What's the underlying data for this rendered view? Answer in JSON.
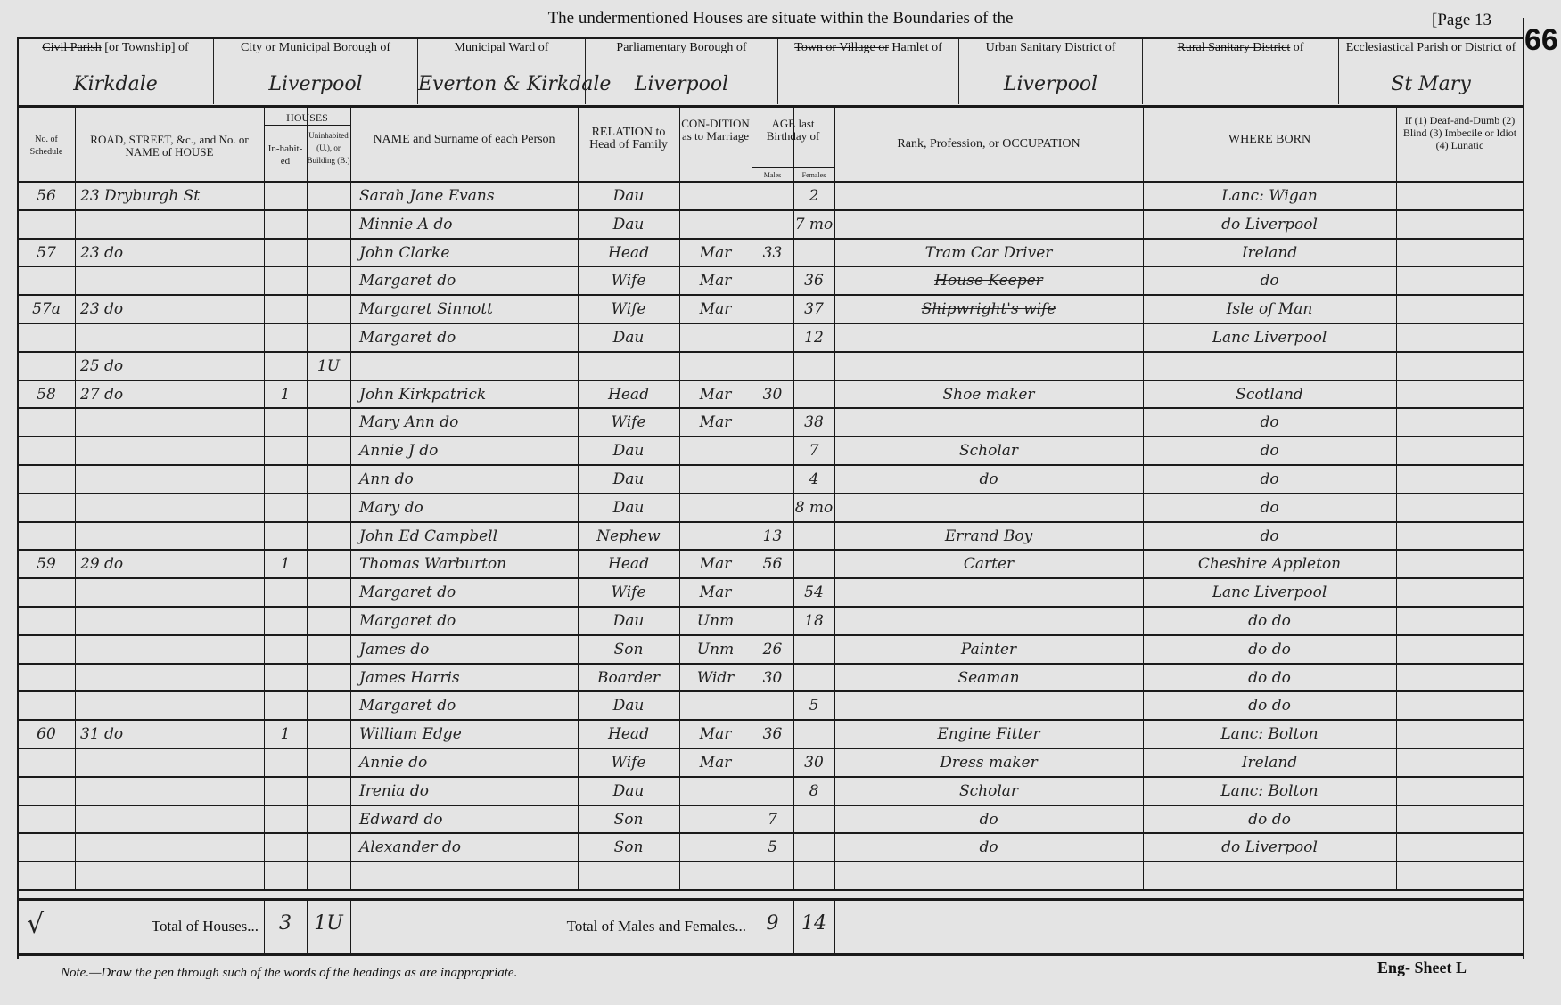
{
  "page": {
    "title": "The undermentioned Houses are situate within the Boundaries of the",
    "page_label": "[Page 13",
    "folio_number": "66",
    "note": "Note.—Draw the pen through such of the words of the headings as are inappropriate.",
    "sheet": "Eng- Sheet L"
  },
  "districts": [
    {
      "label_struck": "Civil Parish",
      "label": "[or Township] of",
      "value": "Kirkdale"
    },
    {
      "label_struck": "",
      "label": "City or Municipal Borough of",
      "value": "Liverpool"
    },
    {
      "label_struck": "",
      "label": "Municipal Ward of",
      "value": "Everton & Kirkdale"
    },
    {
      "label_struck": "",
      "label": "Parliamentary Borough of",
      "value": "Liverpool"
    },
    {
      "label_struck": "Town or Village or",
      "label": "Hamlet of",
      "value": ""
    },
    {
      "label_struck": "",
      "label": "Urban Sanitary District of",
      "value": "Liverpool"
    },
    {
      "label_struck": "Rural Sanitary District",
      "label": "of",
      "value": ""
    },
    {
      "label_struck": "",
      "label": "Ecclesiastical Parish or District of",
      "value": "St Mary"
    }
  ],
  "columns": {
    "schedule": "No. of Schedule",
    "road": "ROAD, STREET, &c., and No. or NAME of HOUSE",
    "houses": "HOUSES",
    "inhabited": "In-habit-ed",
    "uninhabited": "Uninhabited (U.), or Building (B.)",
    "name": "NAME and Surname of each Person",
    "relation": "RELATION to Head of Family",
    "condition": "CON-DITION as to Marriage",
    "age": "AGE last Birthday of",
    "males": "Males",
    "females": "Females",
    "occupation": "Rank, Profession, or OCCUPATION",
    "where_born": "WHERE BORN",
    "infirmity": "If (1) Deaf-and-Dumb (2) Blind (3) Imbecile or Idiot (4) Lunatic"
  },
  "rows": [
    {
      "schedule": "56",
      "road": "23 Dryburgh St",
      "inhabited": "",
      "uninhabited": "",
      "name": "Sarah Jane Evans",
      "relation": "Dau",
      "condition": "",
      "male_age": "",
      "female_age": "2",
      "occupation": "",
      "occupation_struck": false,
      "where_born": "Lanc: Wigan"
    },
    {
      "schedule": "",
      "road": "",
      "inhabited": "",
      "uninhabited": "",
      "name": "Minnie A do",
      "relation": "Dau",
      "condition": "",
      "male_age": "",
      "female_age": "7 mo",
      "occupation": "",
      "occupation_struck": false,
      "where_born": "do Liverpool"
    },
    {
      "schedule": "57",
      "road": "23 do",
      "inhabited": "",
      "uninhabited": "",
      "name": "John Clarke",
      "relation": "Head",
      "condition": "Mar",
      "male_age": "33",
      "female_age": "",
      "occupation": "Tram Car Driver",
      "occupation_struck": false,
      "where_born": "Ireland"
    },
    {
      "schedule": "",
      "road": "",
      "inhabited": "",
      "uninhabited": "",
      "name": "Margaret do",
      "relation": "Wife",
      "condition": "Mar",
      "male_age": "",
      "female_age": "36",
      "occupation": "House Keeper",
      "occupation_struck": true,
      "where_born": "do"
    },
    {
      "schedule": "57a",
      "road": "23 do",
      "inhabited": "",
      "uninhabited": "",
      "name": "Margaret Sinnott",
      "relation": "Wife",
      "condition": "Mar",
      "male_age": "",
      "female_age": "37",
      "occupation": "Shipwright's wife",
      "occupation_struck": true,
      "where_born": "Isle of Man"
    },
    {
      "schedule": "",
      "road": "",
      "inhabited": "",
      "uninhabited": "",
      "name": "Margaret do",
      "relation": "Dau",
      "condition": "",
      "male_age": "",
      "female_age": "12",
      "occupation": "",
      "occupation_struck": false,
      "where_born": "Lanc Liverpool"
    },
    {
      "schedule": "",
      "road": "25 do",
      "inhabited": "",
      "uninhabited": "1U",
      "name": "",
      "relation": "",
      "condition": "",
      "male_age": "",
      "female_age": "",
      "occupation": "",
      "occupation_struck": false,
      "where_born": ""
    },
    {
      "schedule": "58",
      "road": "27 do",
      "inhabited": "1",
      "uninhabited": "",
      "name": "John Kirkpatrick",
      "relation": "Head",
      "condition": "Mar",
      "male_age": "30",
      "female_age": "",
      "occupation": "Shoe maker",
      "occupation_struck": false,
      "where_born": "Scotland"
    },
    {
      "schedule": "",
      "road": "",
      "inhabited": "",
      "uninhabited": "",
      "name": "Mary Ann do",
      "relation": "Wife",
      "condition": "Mar",
      "male_age": "",
      "female_age": "38",
      "occupation": "",
      "occupation_struck": false,
      "where_born": "do"
    },
    {
      "schedule": "",
      "road": "",
      "inhabited": "",
      "uninhabited": "",
      "name": "Annie J do",
      "relation": "Dau",
      "condition": "",
      "male_age": "",
      "female_age": "7",
      "occupation": "Scholar",
      "occupation_struck": false,
      "where_born": "do"
    },
    {
      "schedule": "",
      "road": "",
      "inhabited": "",
      "uninhabited": "",
      "name": "Ann do",
      "relation": "Dau",
      "condition": "",
      "male_age": "",
      "female_age": "4",
      "occupation": "do",
      "occupation_struck": false,
      "where_born": "do"
    },
    {
      "schedule": "",
      "road": "",
      "inhabited": "",
      "uninhabited": "",
      "name": "Mary do",
      "relation": "Dau",
      "condition": "",
      "male_age": "",
      "female_age": "8 mo",
      "occupation": "",
      "occupation_struck": false,
      "where_born": "do"
    },
    {
      "schedule": "",
      "road": "",
      "inhabited": "",
      "uninhabited": "",
      "name": "John Ed Campbell",
      "relation": "Nephew",
      "condition": "",
      "male_age": "13",
      "female_age": "",
      "occupation": "Errand Boy",
      "occupation_struck": false,
      "where_born": "do"
    },
    {
      "schedule": "59",
      "road": "29 do",
      "inhabited": "1",
      "uninhabited": "",
      "name": "Thomas Warburton",
      "relation": "Head",
      "condition": "Mar",
      "male_age": "56",
      "female_age": "",
      "occupation": "Carter",
      "occupation_struck": false,
      "where_born": "Cheshire Appleton"
    },
    {
      "schedule": "",
      "road": "",
      "inhabited": "",
      "uninhabited": "",
      "name": "Margaret do",
      "relation": "Wife",
      "condition": "Mar",
      "male_age": "",
      "female_age": "54",
      "occupation": "",
      "occupation_struck": false,
      "where_born": "Lanc Liverpool"
    },
    {
      "schedule": "",
      "road": "",
      "inhabited": "",
      "uninhabited": "",
      "name": "Margaret do",
      "relation": "Dau",
      "condition": "Unm",
      "male_age": "",
      "female_age": "18",
      "occupation": "",
      "occupation_struck": false,
      "where_born": "do do"
    },
    {
      "schedule": "",
      "road": "",
      "inhabited": "",
      "uninhabited": "",
      "name": "James do",
      "relation": "Son",
      "condition": "Unm",
      "male_age": "26",
      "female_age": "",
      "occupation": "Painter",
      "occupation_struck": false,
      "where_born": "do do"
    },
    {
      "schedule": "",
      "road": "",
      "inhabited": "",
      "uninhabited": "",
      "name": "James Harris",
      "relation": "Boarder",
      "condition": "Widr",
      "male_age": "30",
      "female_age": "",
      "occupation": "Seaman",
      "occupation_struck": false,
      "where_born": "do do"
    },
    {
      "schedule": "",
      "road": "",
      "inhabited": "",
      "uninhabited": "",
      "name": "Margaret do",
      "relation": "Dau",
      "condition": "",
      "male_age": "",
      "female_age": "5",
      "occupation": "",
      "occupation_struck": false,
      "where_born": "do do"
    },
    {
      "schedule": "60",
      "road": "31 do",
      "inhabited": "1",
      "uninhabited": "",
      "name": "William Edge",
      "relation": "Head",
      "condition": "Mar",
      "male_age": "36",
      "female_age": "",
      "occupation": "Engine Fitter",
      "occupation_struck": false,
      "where_born": "Lanc: Bolton"
    },
    {
      "schedule": "",
      "road": "",
      "inhabited": "",
      "uninhabited": "",
      "name": "Annie do",
      "relation": "Wife",
      "condition": "Mar",
      "male_age": "",
      "female_age": "30",
      "occupation": "Dress maker",
      "occupation_struck": false,
      "where_born": "Ireland"
    },
    {
      "schedule": "",
      "road": "",
      "inhabited": "",
      "uninhabited": "",
      "name": "Irenia do",
      "relation": "Dau",
      "condition": "",
      "male_age": "",
      "female_age": "8",
      "occupation": "Scholar",
      "occupation_struck": false,
      "where_born": "Lanc: Bolton"
    },
    {
      "schedule": "",
      "road": "",
      "inhabited": "",
      "uninhabited": "",
      "name": "Edward do",
      "relation": "Son",
      "condition": "",
      "male_age": "7",
      "female_age": "",
      "occupation": "do",
      "occupation_struck": false,
      "where_born": "do do"
    },
    {
      "schedule": "",
      "road": "",
      "inhabited": "",
      "uninhabited": "",
      "name": "Alexander do",
      "relation": "Son",
      "condition": "",
      "male_age": "5",
      "female_age": "",
      "occupation": "do",
      "occupation_struck": false,
      "where_born": "do Liverpool"
    },
    {
      "schedule": "",
      "road": "",
      "inhabited": "",
      "uninhabited": "",
      "name": "",
      "relation": "",
      "condition": "",
      "male_age": "",
      "female_age": "",
      "occupation": "",
      "occupation_struck": false,
      "where_born": ""
    }
  ],
  "totals": {
    "houses_label": "Total of Houses...",
    "inhabited": "3",
    "uninhabited": "1U",
    "persons_label": "Total of Males and Females...",
    "males": "9",
    "females": "14"
  }
}
